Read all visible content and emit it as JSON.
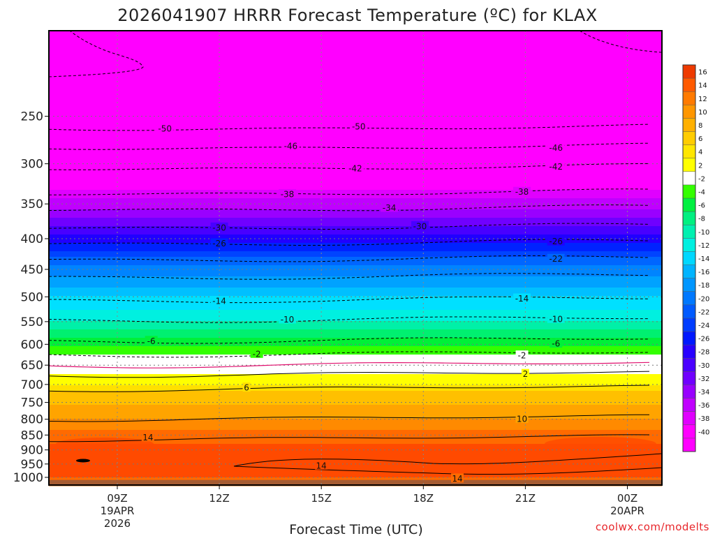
{
  "chart_data": {
    "type": "heatmap",
    "title": "2026041907 HRRR Forecast Temperature (ºC) for KLAX",
    "xlabel": "Forecast Time (UTC)",
    "ylabel": "",
    "x_range_hours_from_09Z": [
      -2,
      16
    ],
    "y_range_hPa": [
      1030,
      180
    ],
    "x_ticks": [
      {
        "hour": 0,
        "line1": "09Z",
        "line2": "19APR",
        "line3": "2026"
      },
      {
        "hour": 3,
        "line1": "12Z",
        "line2": "",
        "line3": ""
      },
      {
        "hour": 6,
        "line1": "15Z",
        "line2": "",
        "line3": ""
      },
      {
        "hour": 9,
        "line1": "18Z",
        "line2": "",
        "line3": ""
      },
      {
        "hour": 12,
        "line1": "21Z",
        "line2": "",
        "line3": ""
      },
      {
        "hour": 15,
        "line1": "00Z",
        "line2": "20APR",
        "line3": ""
      }
    ],
    "y_ticks": [
      250,
      300,
      350,
      400,
      450,
      500,
      550,
      600,
      650,
      700,
      750,
      800,
      850,
      900,
      950,
      1000
    ],
    "temperature_profile": [
      {
        "p": 180,
        "t": -60
      },
      {
        "p": 200,
        "t": -58
      },
      {
        "p": 230,
        "t": -54
      },
      {
        "p": 250,
        "t": -51
      },
      {
        "p": 280,
        "t": -46
      },
      {
        "p": 300,
        "t": -43
      },
      {
        "p": 330,
        "t": -38
      },
      {
        "p": 350,
        "t": -35
      },
      {
        "p": 380,
        "t": -30
      },
      {
        "p": 400,
        "t": -27
      },
      {
        "p": 430,
        "t": -22
      },
      {
        "p": 450,
        "t": -19
      },
      {
        "p": 500,
        "t": -14
      },
      {
        "p": 550,
        "t": -10
      },
      {
        "p": 585,
        "t": -6
      },
      {
        "p": 622,
        "t": -2
      },
      {
        "p": 650,
        "t": 0
      },
      {
        "p": 670,
        "t": 2
      },
      {
        "p": 700,
        "t": 4
      },
      {
        "p": 730,
        "t": 7
      },
      {
        "p": 760,
        "t": 8
      },
      {
        "p": 800,
        "t": 10
      },
      {
        "p": 850,
        "t": 13
      },
      {
        "p": 900,
        "t": 15
      },
      {
        "p": 950,
        "t": 15
      },
      {
        "p": 1000,
        "t": 14
      },
      {
        "p": 1030,
        "t": 13
      }
    ],
    "colorbar": {
      "levels": [
        16,
        14,
        12,
        10,
        8,
        6,
        4,
        2,
        -2,
        -4,
        -6,
        -8,
        -10,
        -12,
        -14,
        -16,
        -18,
        -20,
        -22,
        -24,
        -26,
        -28,
        -30,
        -32,
        -34,
        -36,
        -38,
        -40
      ],
      "colors": [
        "#ee3a00",
        "#ff5a00",
        "#ff7a00",
        "#ff9600",
        "#ffb000",
        "#ffcc00",
        "#ffe600",
        "#ffff00",
        "#ffffff",
        "#33ff00",
        "#00f040",
        "#00f080",
        "#00f0b0",
        "#00f0e0",
        "#00d8ff",
        "#00b4ff",
        "#0096ff",
        "#0078ff",
        "#005aff",
        "#003cff",
        "#0018ff",
        "#2800ff",
        "#4a00ff",
        "#7000ff",
        "#9800ff",
        "#c000ff",
        "#e000ff",
        "#ff00ff",
        "#ff00ff"
      ]
    },
    "contour_labels": [
      {
        "text": "-50",
        "hour": 1.4,
        "p": 262
      },
      {
        "text": "-50",
        "hour": 7.1,
        "p": 260
      },
      {
        "text": "-46",
        "hour": 5.1,
        "p": 280
      },
      {
        "text": "-46",
        "hour": 12.9,
        "p": 282
      },
      {
        "text": "-42",
        "hour": 7.0,
        "p": 305
      },
      {
        "text": "-42",
        "hour": 12.9,
        "p": 303
      },
      {
        "text": "-38",
        "hour": 5.0,
        "p": 337
      },
      {
        "text": "-38",
        "hour": 11.9,
        "p": 334
      },
      {
        "text": "-34",
        "hour": 8.0,
        "p": 355
      },
      {
        "text": "-30",
        "hour": 3.0,
        "p": 383
      },
      {
        "text": "-30",
        "hour": 8.9,
        "p": 381
      },
      {
        "text": "-26",
        "hour": 3.0,
        "p": 407
      },
      {
        "text": "-26",
        "hour": 12.9,
        "p": 404
      },
      {
        "text": "-22",
        "hour": 12.9,
        "p": 432
      },
      {
        "text": "-14",
        "hour": 3.0,
        "p": 508
      },
      {
        "text": "-14",
        "hour": 11.9,
        "p": 503
      },
      {
        "text": "-10",
        "hour": 5.0,
        "p": 545
      },
      {
        "text": "-10",
        "hour": 12.9,
        "p": 544
      },
      {
        "text": "-6",
        "hour": 1.0,
        "p": 592
      },
      {
        "text": "-6",
        "hour": 12.9,
        "p": 598
      },
      {
        "text": "-2",
        "hour": 4.1,
        "p": 622
      },
      {
        "text": "-2",
        "hour": 11.9,
        "p": 626
      },
      {
        "text": "2",
        "hour": 12.0,
        "p": 672
      },
      {
        "text": "6",
        "hour": 3.8,
        "p": 708
      },
      {
        "text": "10",
        "hour": 11.9,
        "p": 798
      },
      {
        "text": "14",
        "hour": 0.9,
        "p": 857
      },
      {
        "text": "14",
        "hour": 6.0,
        "p": 955
      },
      {
        "text": "14",
        "hour": 10.0,
        "p": 1004
      }
    ]
  },
  "footer": {
    "credit": "coolwx.com/modelts"
  }
}
